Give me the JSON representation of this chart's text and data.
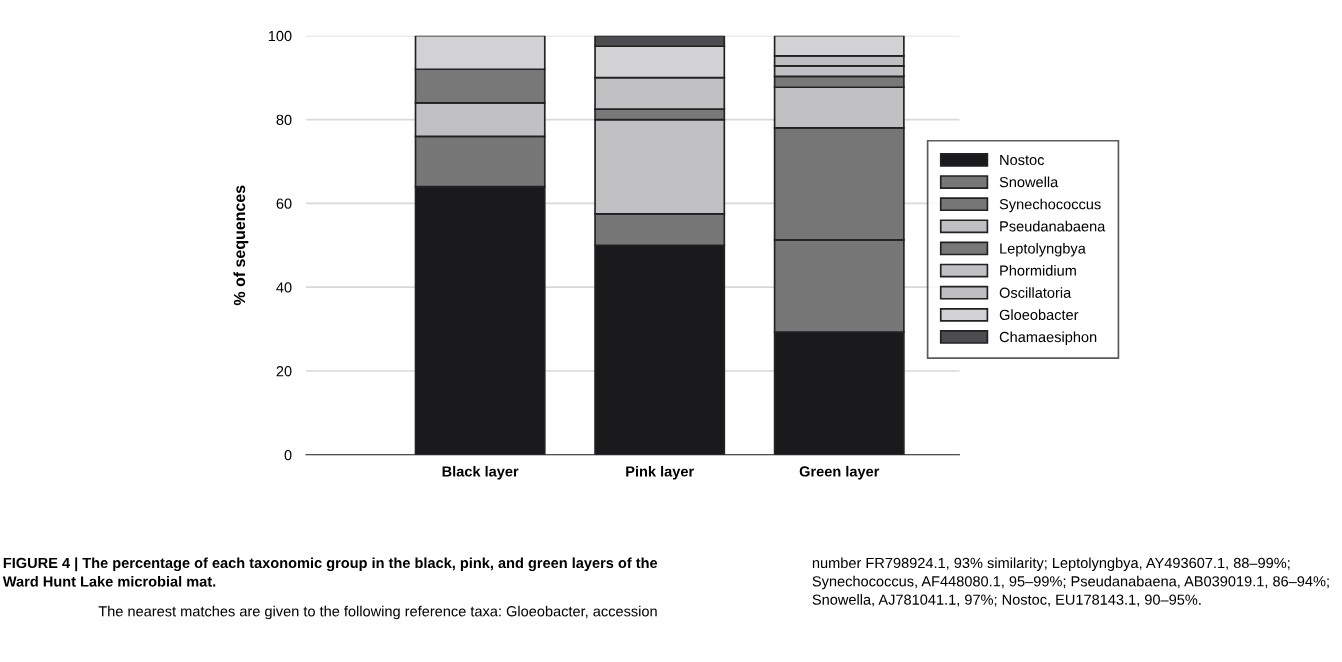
{
  "chart_data": {
    "type": "bar",
    "stacked": true,
    "ylabel": "% of sequences",
    "categories": [
      "Black layer",
      "Pink layer",
      "Green layer"
    ],
    "series": [
      {
        "name": "Nostoc",
        "color": "#1a1a1c",
        "values": [
          64,
          50,
          29.3
        ]
      },
      {
        "name": "Snowella",
        "color": "#777777",
        "values": [
          12,
          7.5,
          22
        ]
      },
      {
        "name": "Synechococcus",
        "color": "#767676",
        "values": [
          0,
          0,
          26.7
        ]
      },
      {
        "name": "Pseudanabaena",
        "color": "#c0c0c2",
        "values": [
          8,
          22.5,
          9.7
        ]
      },
      {
        "name": "Leptolyngbya",
        "color": "#787878",
        "values": [
          8,
          2.5,
          2.6
        ]
      },
      {
        "name": "Phormidium",
        "color": "#c1c1c3",
        "values": [
          0,
          7.5,
          2.5
        ]
      },
      {
        "name": "Oscillatoria",
        "color": "#bfbfc1",
        "values": [
          0,
          0,
          2.4
        ]
      },
      {
        "name": "Gloeobacter",
        "color": "#d2d2d4",
        "values": [
          8,
          7.5,
          4.8
        ]
      },
      {
        "name": "Chamaesiphon",
        "color": "#4d4d4f",
        "values": [
          0,
          2.5,
          0
        ]
      }
    ],
    "ylim": [
      0,
      100
    ],
    "yticks": [
      0,
      20,
      40,
      60,
      80,
      100
    ],
    "grid": "y",
    "legend": "right",
    "title": "FIGURE 4 | The percentage of each taxonomic group in the black, pink, and green layers of the Ward Hunt Lake microbial mat.",
    "annotations": [
      "The nearest matches are given to the following reference taxa: Gloeobacter, accession",
      "number FR798924.1, 93% similarity; Leptolyngbya, AY493607.1, 88–99%; Synechococcus, AF448080.1, 95–99%; Pseudanabaena, AB039019.1, 86–94%; Snowella, AJ781041.1, 97%; Nostoc, EU178143.1, 90–95%."
    ]
  }
}
